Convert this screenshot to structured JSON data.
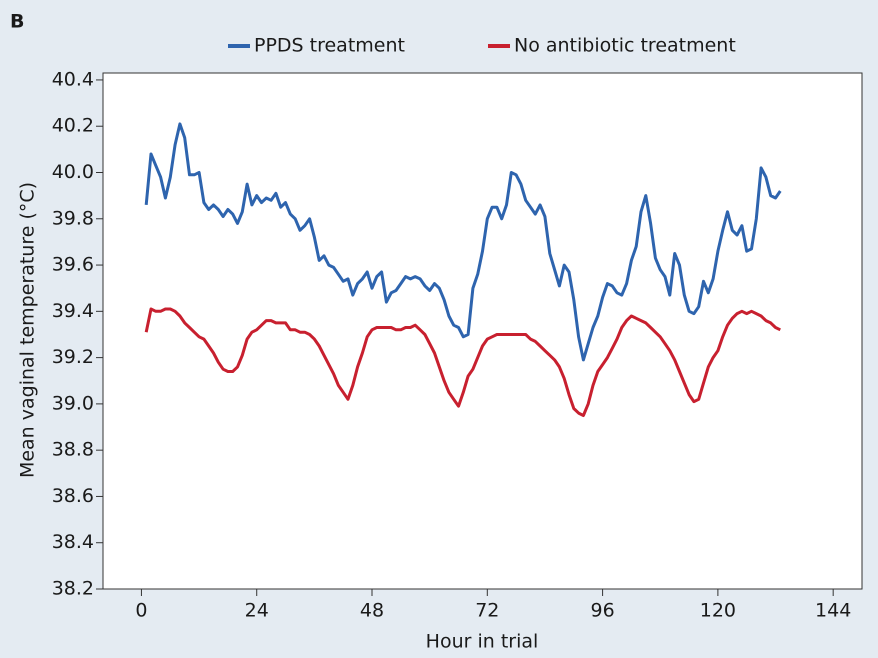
{
  "chart_data": {
    "type": "line",
    "panel_label": "B",
    "xlabel": "Hour in trial",
    "ylabel": "Mean vaginal temperature (°C)",
    "legend": "top",
    "x": [
      1,
      2,
      3,
      4,
      5,
      6,
      7,
      8,
      9,
      10,
      11,
      12,
      13,
      14,
      15,
      16,
      17,
      18,
      19,
      20,
      21,
      22,
      23,
      24,
      25,
      26,
      27,
      28,
      29,
      30,
      31,
      32,
      33,
      34,
      35,
      36,
      37,
      38,
      39,
      40,
      41,
      42,
      43,
      44,
      45,
      46,
      47,
      48,
      49,
      50,
      51,
      52,
      53,
      54,
      55,
      56,
      57,
      58,
      59,
      60,
      61,
      62,
      63,
      64,
      65,
      66,
      67,
      68,
      69,
      70,
      71,
      72,
      73,
      74,
      75,
      76,
      77,
      78,
      79,
      80,
      81,
      82,
      83,
      84,
      85,
      86,
      87,
      88,
      89,
      90,
      91,
      92,
      93,
      94,
      95,
      96,
      97,
      98,
      99,
      100,
      101,
      102,
      103,
      104,
      105,
      106,
      107,
      108,
      109,
      110,
      111,
      112,
      113,
      114,
      115,
      116,
      117,
      118,
      119,
      120,
      121,
      122,
      123,
      124,
      125,
      126,
      127,
      128,
      129,
      130,
      131,
      132,
      133
    ],
    "series": [
      {
        "name": "PPDS treatment",
        "color": "#2e64ae",
        "values": [
          39.86,
          40.08,
          40.03,
          39.98,
          39.89,
          39.98,
          40.12,
          40.21,
          40.15,
          39.99,
          39.99,
          40.0,
          39.87,
          39.84,
          39.86,
          39.84,
          39.81,
          39.84,
          39.82,
          39.78,
          39.83,
          39.95,
          39.86,
          39.9,
          39.87,
          39.89,
          39.88,
          39.91,
          39.85,
          39.87,
          39.82,
          39.8,
          39.75,
          39.77,
          39.8,
          39.72,
          39.62,
          39.64,
          39.6,
          39.59,
          39.56,
          39.53,
          39.54,
          39.47,
          39.52,
          39.54,
          39.57,
          39.5,
          39.55,
          39.57,
          39.44,
          39.48,
          39.49,
          39.52,
          39.55,
          39.54,
          39.55,
          39.54,
          39.51,
          39.49,
          39.52,
          39.5,
          39.45,
          39.38,
          39.34,
          39.33,
          39.29,
          39.3,
          39.5,
          39.56,
          39.66,
          39.8,
          39.85,
          39.85,
          39.8,
          39.86,
          40.0,
          39.99,
          39.95,
          39.88,
          39.85,
          39.82,
          39.86,
          39.81,
          39.65,
          39.58,
          39.51,
          39.6,
          39.57,
          39.45,
          39.29,
          39.19,
          39.26,
          39.33,
          39.38,
          39.46,
          39.52,
          39.51,
          39.48,
          39.47,
          39.52,
          39.62,
          39.68,
          39.83,
          39.9,
          39.78,
          39.63,
          39.58,
          39.55,
          39.47,
          39.65,
          39.6,
          39.47,
          39.4,
          39.39,
          39.42,
          39.53,
          39.48,
          39.54,
          39.66,
          39.75,
          39.83,
          39.75,
          39.73,
          39.77,
          39.66,
          39.67,
          39.8,
          40.02,
          39.98,
          39.9,
          39.89,
          39.92
        ]
      },
      {
        "name": "No antibiotic treatment",
        "color": "#c8202f",
        "values": [
          39.31,
          39.41,
          39.4,
          39.4,
          39.41,
          39.41,
          39.4,
          39.38,
          39.35,
          39.33,
          39.31,
          39.29,
          39.28,
          39.25,
          39.22,
          39.18,
          39.15,
          39.14,
          39.14,
          39.16,
          39.21,
          39.28,
          39.31,
          39.32,
          39.34,
          39.36,
          39.36,
          39.35,
          39.35,
          39.35,
          39.32,
          39.32,
          39.31,
          39.31,
          39.3,
          39.28,
          39.25,
          39.21,
          39.17,
          39.13,
          39.08,
          39.05,
          39.02,
          39.08,
          39.16,
          39.22,
          39.29,
          39.32,
          39.33,
          39.33,
          39.33,
          39.33,
          39.32,
          39.32,
          39.33,
          39.33,
          39.34,
          39.32,
          39.3,
          39.26,
          39.22,
          39.16,
          39.1,
          39.05,
          39.02,
          38.99,
          39.05,
          39.12,
          39.15,
          39.2,
          39.25,
          39.28,
          39.29,
          39.3,
          39.3,
          39.3,
          39.3,
          39.3,
          39.3,
          39.3,
          39.28,
          39.27,
          39.25,
          39.23,
          39.21,
          39.19,
          39.16,
          39.11,
          39.04,
          38.98,
          38.96,
          38.95,
          39.0,
          39.08,
          39.14,
          39.17,
          39.2,
          39.24,
          39.28,
          39.33,
          39.36,
          39.38,
          39.37,
          39.36,
          39.35,
          39.33,
          39.31,
          39.29,
          39.26,
          39.23,
          39.19,
          39.14,
          39.09,
          39.04,
          39.01,
          39.02,
          39.09,
          39.16,
          39.2,
          39.23,
          39.29,
          39.34,
          39.37,
          39.39,
          39.4,
          39.39,
          39.4,
          39.39,
          39.38,
          39.36,
          39.35,
          39.33,
          39.32
        ]
      }
    ],
    "xlim": [
      -8,
      150
    ],
    "xticks": [
      0,
      24,
      48,
      72,
      96,
      120,
      144
    ],
    "ylim": [
      38.2,
      40.43
    ],
    "yticks": [
      38.2,
      38.4,
      38.6,
      38.8,
      {
        "value": 39,
        "label": "39.0"
      },
      39.2,
      39.4,
      39.6,
      39.8,
      {
        "value": 40,
        "label": "40.0"
      },
      40.2,
      40.4
    ]
  }
}
